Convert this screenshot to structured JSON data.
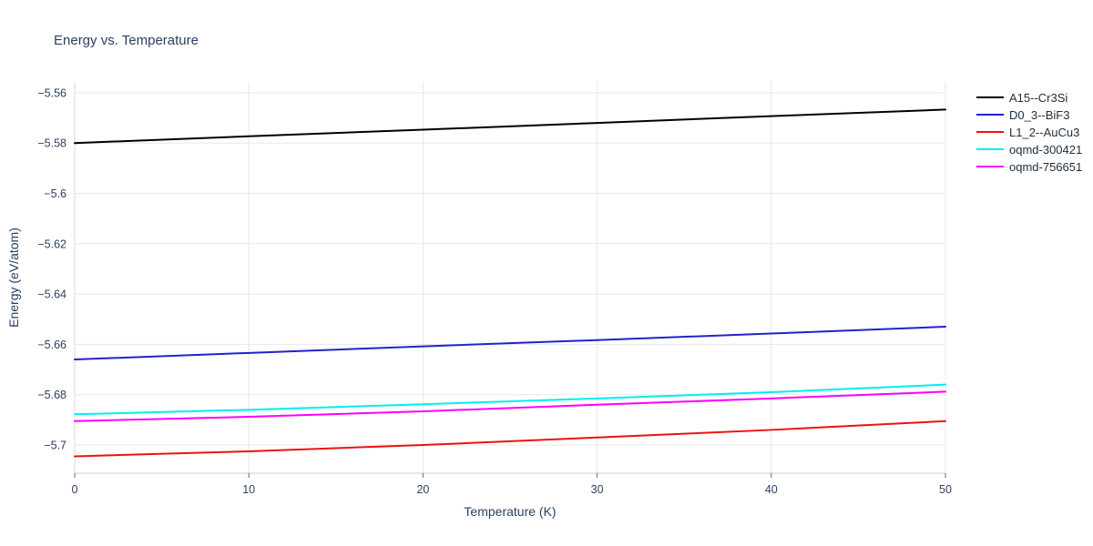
{
  "title": "Energy vs. Temperature",
  "xlabel": "Temperature (K)",
  "ylabel": "Energy (eV/atom)",
  "chart_data": {
    "type": "line",
    "title": "Energy vs. Temperature",
    "xlabel": "Temperature (K)",
    "ylabel": "Energy (eV/atom)",
    "x": [
      0,
      10,
      20,
      30,
      40,
      50
    ],
    "series": [
      {
        "name": "A15--Cr3Si",
        "color": "#000000",
        "values": [
          -5.58,
          -5.5773,
          -5.5747,
          -5.572,
          -5.5693,
          -5.5667
        ]
      },
      {
        "name": "D0_3--BiF3",
        "color": "#2222cc",
        "values": [
          -5.666,
          -5.6634,
          -5.6608,
          -5.6583,
          -5.6557,
          -5.653
        ]
      },
      {
        "name": "L1_2--AuCu3",
        "color": "#ee1111",
        "values": [
          -5.7045,
          -5.7025,
          -5.7,
          -5.697,
          -5.694,
          -5.6905
        ]
      },
      {
        "name": "oqmd-300421",
        "color": "#00eeee",
        "values": [
          -5.6878,
          -5.686,
          -5.6838,
          -5.6815,
          -5.679,
          -5.676
        ]
      },
      {
        "name": "oqmd-756651",
        "color": "#ff00ff",
        "values": [
          -5.6905,
          -5.6888,
          -5.6866,
          -5.684,
          -5.6815,
          -5.6788
        ]
      }
    ],
    "xticks": [
      0,
      10,
      20,
      30,
      40,
      50
    ],
    "xtick_labels": [
      "0",
      "10",
      "20",
      "30",
      "40",
      "50"
    ],
    "yticks": [
      -5.7,
      -5.68,
      -5.66,
      -5.64,
      -5.62,
      -5.6,
      -5.58,
      -5.56
    ],
    "ytick_labels": [
      "−5.7",
      "−5.68",
      "−5.66",
      "−5.64",
      "−5.62",
      "−5.6",
      "−5.58",
      "−5.56"
    ],
    "xlim": [
      0,
      50
    ],
    "ylim": [
      -5.7112,
      -5.5557
    ],
    "grid": true,
    "legend_position": "top-right-outside",
    "grid_color": "#e8e8e8",
    "zeroline_color": "#d8d8d8",
    "axisline_color": "#cccccc",
    "tick_color": "#666666",
    "text_color": "#2a3f5f"
  }
}
